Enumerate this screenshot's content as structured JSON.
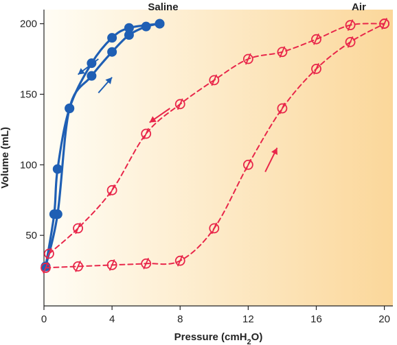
{
  "chart_data": {
    "type": "line",
    "xlabel_main": "Pressure (cmH",
    "xlabel_sub": "2",
    "xlabel_end": "O)",
    "ylabel": "Volume (mL)",
    "xlim": [
      0,
      20.5
    ],
    "ylim": [
      0,
      210
    ],
    "x_ticks": [
      0,
      4,
      8,
      12,
      16,
      20
    ],
    "y_ticks": [
      50,
      100,
      150,
      200
    ],
    "grid": false,
    "background": {
      "gradient_left": "#fffdf5",
      "gradient_right": "#fbd79a"
    },
    "series": [
      {
        "name": "Saline",
        "branch": "inflation",
        "color": "#1f5fb4",
        "marker": "filled",
        "points": [
          [
            0.1,
            28
          ],
          [
            0.8,
            65
          ],
          [
            1.5,
            140
          ],
          [
            2.8,
            163
          ],
          [
            4.0,
            180
          ],
          [
            5.0,
            192
          ],
          [
            6.0,
            198
          ],
          [
            6.8,
            200
          ]
        ]
      },
      {
        "name": "Saline",
        "branch": "deflation",
        "color": "#1f5fb4",
        "marker": "filled",
        "points": [
          [
            6.8,
            200
          ],
          [
            5.0,
            197
          ],
          [
            4.0,
            190
          ],
          [
            2.8,
            172
          ],
          [
            1.5,
            140
          ],
          [
            0.8,
            97
          ],
          [
            0.6,
            65
          ],
          [
            0.1,
            28
          ]
        ]
      },
      {
        "name": "Air",
        "branch": "inflation",
        "color": "#e8264a",
        "marker": "open",
        "points": [
          [
            0.1,
            27
          ],
          [
            2.0,
            28
          ],
          [
            4.0,
            29
          ],
          [
            6.0,
            30
          ],
          [
            8.0,
            32
          ],
          [
            10.0,
            55
          ],
          [
            12.0,
            100
          ],
          [
            14.0,
            140
          ],
          [
            16.0,
            168
          ],
          [
            18.0,
            187
          ],
          [
            20.0,
            200
          ]
        ]
      },
      {
        "name": "Air",
        "branch": "deflation",
        "color": "#e8264a",
        "marker": "open",
        "points": [
          [
            20.0,
            200
          ],
          [
            18.0,
            199
          ],
          [
            16.0,
            189
          ],
          [
            14.0,
            180
          ],
          [
            12.0,
            175
          ],
          [
            10.0,
            160
          ],
          [
            8.0,
            143
          ],
          [
            6.0,
            122
          ],
          [
            4.0,
            82
          ],
          [
            2.0,
            55
          ],
          [
            0.3,
            37
          ]
        ]
      }
    ],
    "labels": [
      {
        "text": "Saline",
        "x": 7.0,
        "y": 212
      },
      {
        "text": "Air",
        "x": 18.5,
        "y": 212
      }
    ],
    "arrows": [
      {
        "series": "Saline",
        "x1": 3.2,
        "y1": 175,
        "x2": 2.0,
        "y2": 164
      },
      {
        "series": "Saline",
        "x1": 3.2,
        "y1": 151,
        "x2": 4.0,
        "y2": 162
      },
      {
        "series": "Air",
        "x1": 7.4,
        "y1": 140,
        "x2": 6.2,
        "y2": 130
      },
      {
        "series": "Air",
        "x1": 13.0,
        "y1": 95,
        "x2": 13.7,
        "y2": 112
      }
    ]
  }
}
